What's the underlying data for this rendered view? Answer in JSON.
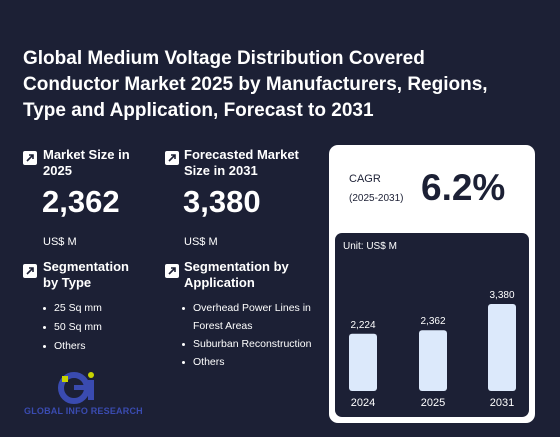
{
  "title": "Global Medium Voltage Distribution Covered Conductor Market 2025 by Manufacturers, Regions, Type and Application, Forecast to 2031",
  "market_size": {
    "label": "Market Size in 2025",
    "value": "2,362",
    "unit": "US$ M"
  },
  "forecast": {
    "label": "Forecasted Market Size in 2031",
    "value": "3,380",
    "unit": "US$ M"
  },
  "segmentation_type": {
    "label": "Segmentation by Type",
    "items": [
      "25 Sq mm",
      "50 Sq mm",
      "Others"
    ]
  },
  "segmentation_app": {
    "label": "Segmentation by Application",
    "items": [
      "Overhead Power Lines in Forest Areas",
      "Suburban Reconstruction",
      "Others"
    ]
  },
  "cagr": {
    "label": "CAGR",
    "period": "(2025-2031)",
    "value": "6.2%"
  },
  "brand": {
    "name": "GLOBAL INFO RESEARCH",
    "accent": "#3a4bb0",
    "accent2": "#c8d400"
  },
  "colors": {
    "background": "#1c2035",
    "bar": "#dce9fb"
  },
  "chart_data": {
    "type": "bar",
    "unit_label": "Unit: US$ M",
    "categories": [
      "2024",
      "2025",
      "2031"
    ],
    "values": [
      2224,
      2362,
      3380
    ],
    "value_labels": [
      "2,224",
      "2,362",
      "3,380"
    ],
    "ylim": [
      0,
      3380
    ],
    "grid": false
  }
}
